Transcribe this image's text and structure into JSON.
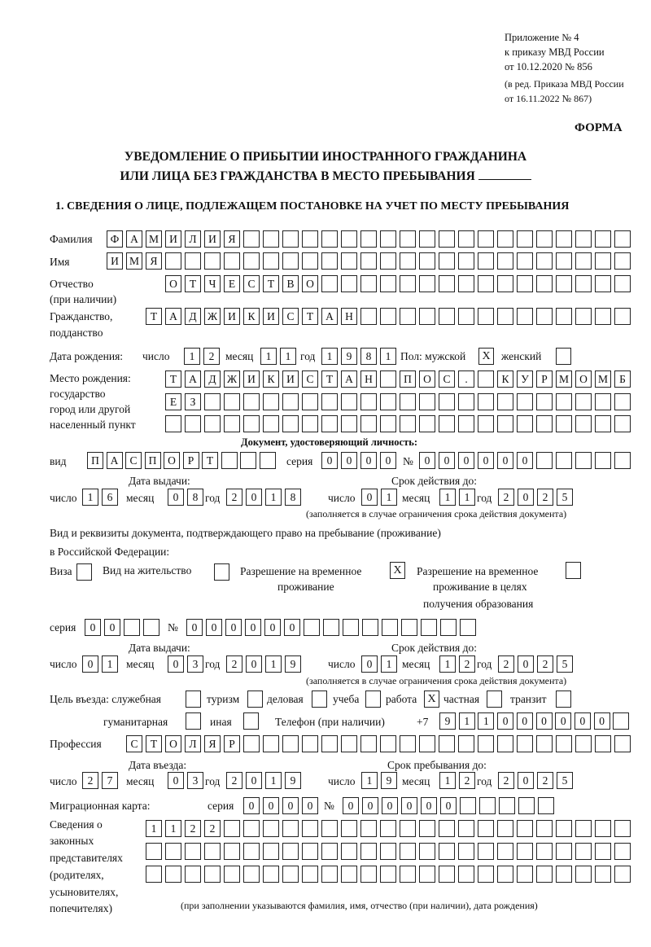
{
  "header": {
    "line1": "Приложение № 4",
    "line2": "к приказу МВД России",
    "line3": "от 10.12.2020 № 856",
    "line4": "(в ред. Приказа МВД России",
    "line5": "от 16.11.2022 № 867)",
    "forma": "ФОРМА"
  },
  "title": {
    "line1": "УВЕДОМЛЕНИЕ О ПРИБЫТИИ ИНОСТРАННОГО ГРАЖДАНИНА",
    "line2": "ИЛИ ЛИЦА БЕЗ ГРАЖДАНСТВА В МЕСТО ПРЕБЫВАНИЯ",
    "section1": "1. СВЕДЕНИЯ О ЛИЦЕ, ПОДЛЕЖАЩЕМ ПОСТАНОВКЕ НА УЧЕТ ПО МЕСТУ ПРЕБЫВАНИЯ"
  },
  "labels": {
    "surname": "Фамилия",
    "name": "Имя",
    "patronymic": "Отчество",
    "patronymic_note": "(при наличии)",
    "citizenship1": "Гражданство,",
    "citizenship2": "подданство",
    "birth_date": "Дата рождения:",
    "day": "число",
    "month": "месяц",
    "year": "год",
    "sex": "Пол: мужской",
    "female": "женский",
    "birthplace1": "Место рождения:",
    "birthplace2": "государство",
    "birthplace3": "город или другой",
    "birthplace4": "населенный пункт",
    "id_doc": "Документ, удостоверяющий личность:",
    "kind": "вид",
    "series": "серия",
    "number": "№",
    "issue_date": "Дата выдачи:",
    "valid_until": "Срок действия до:",
    "valid_note": "(заполняется в случае ограничения срока действия документа)",
    "right_doc1": "Вид и реквизиты документа, подтверждающего право на пребывание (проживание)",
    "right_doc2": "в Российской Федерации:",
    "visa": "Виза",
    "residence": "Вид на жительство",
    "temp1": "Разрешение на временное",
    "temp2": "проживание",
    "edu1": "Разрешение на временное",
    "edu2": "проживание в целях",
    "edu3": "получения образования",
    "purpose": "Цель въезда: служебная",
    "tourism": "туризм",
    "business": "деловая",
    "study": "учеба",
    "work": "работа",
    "private": "частная",
    "transit": "транзит",
    "humanitarian": "гуманитарная",
    "other": "иная",
    "phone": "Телефон (при наличии)",
    "phone_prefix": "+7",
    "profession": "Профессия",
    "entry_date": "Дата въезда:",
    "stay_until": "Срок пребывания до:",
    "migration_card": "Миграционная карта:",
    "reps1": "Сведения о",
    "reps2": "законных",
    "reps3": "представителях",
    "reps4": "(родителях,",
    "reps5": "усыновителях,",
    "reps6": "попечителях)",
    "reps_note": "(при заполнении указываются фамилия, имя, отчество (при наличии), дата рождения)"
  },
  "values": {
    "surname": "ФАМИЛИЯ",
    "name": "ИМЯ",
    "patronymic": "ОТЧЕСТВО",
    "citizenship": "ТАДЖИКИСТАН",
    "birth_day": "12",
    "birth_month": "11",
    "birth_year": "1981",
    "male": "X",
    "female": "",
    "birthplace1": "ТАДЖИКИСТАН ПОС. КУРМОМБ",
    "birthplace2": "ЕЗ",
    "birthplace3": "",
    "id_kind": "ПАСПОРТ",
    "id_series": "0000",
    "id_number": "000000",
    "id_issue_day": "16",
    "id_issue_month": "08",
    "id_issue_year": "2018",
    "id_valid_day": "01",
    "id_valid_month": "11",
    "id_valid_year": "2025",
    "visa": "",
    "residence": "",
    "temp_residence": "X",
    "temp_residence_edu": "",
    "right_series": "00",
    "right_number": "000000",
    "right_issue_day": "01",
    "right_issue_month": "03",
    "right_issue_year": "2019",
    "right_valid_day": "01",
    "right_valid_month": "12",
    "right_valid_year": "2025",
    "purpose_official": "",
    "purpose_tourism": "",
    "purpose_business": "",
    "purpose_study": "",
    "purpose_work": "X",
    "purpose_private": "",
    "purpose_transit": "",
    "purpose_humanitarian": "",
    "purpose_other": "",
    "phone": "911000000",
    "profession": "СТОЛЯР",
    "entry_day": "27",
    "entry_month": "03",
    "entry_year": "2019",
    "stay_day": "19",
    "stay_month": "12",
    "stay_year": "2025",
    "mc_series": "0000",
    "mc_number": "000000",
    "reps1": "1122",
    "reps2": "",
    "reps3": ""
  }
}
